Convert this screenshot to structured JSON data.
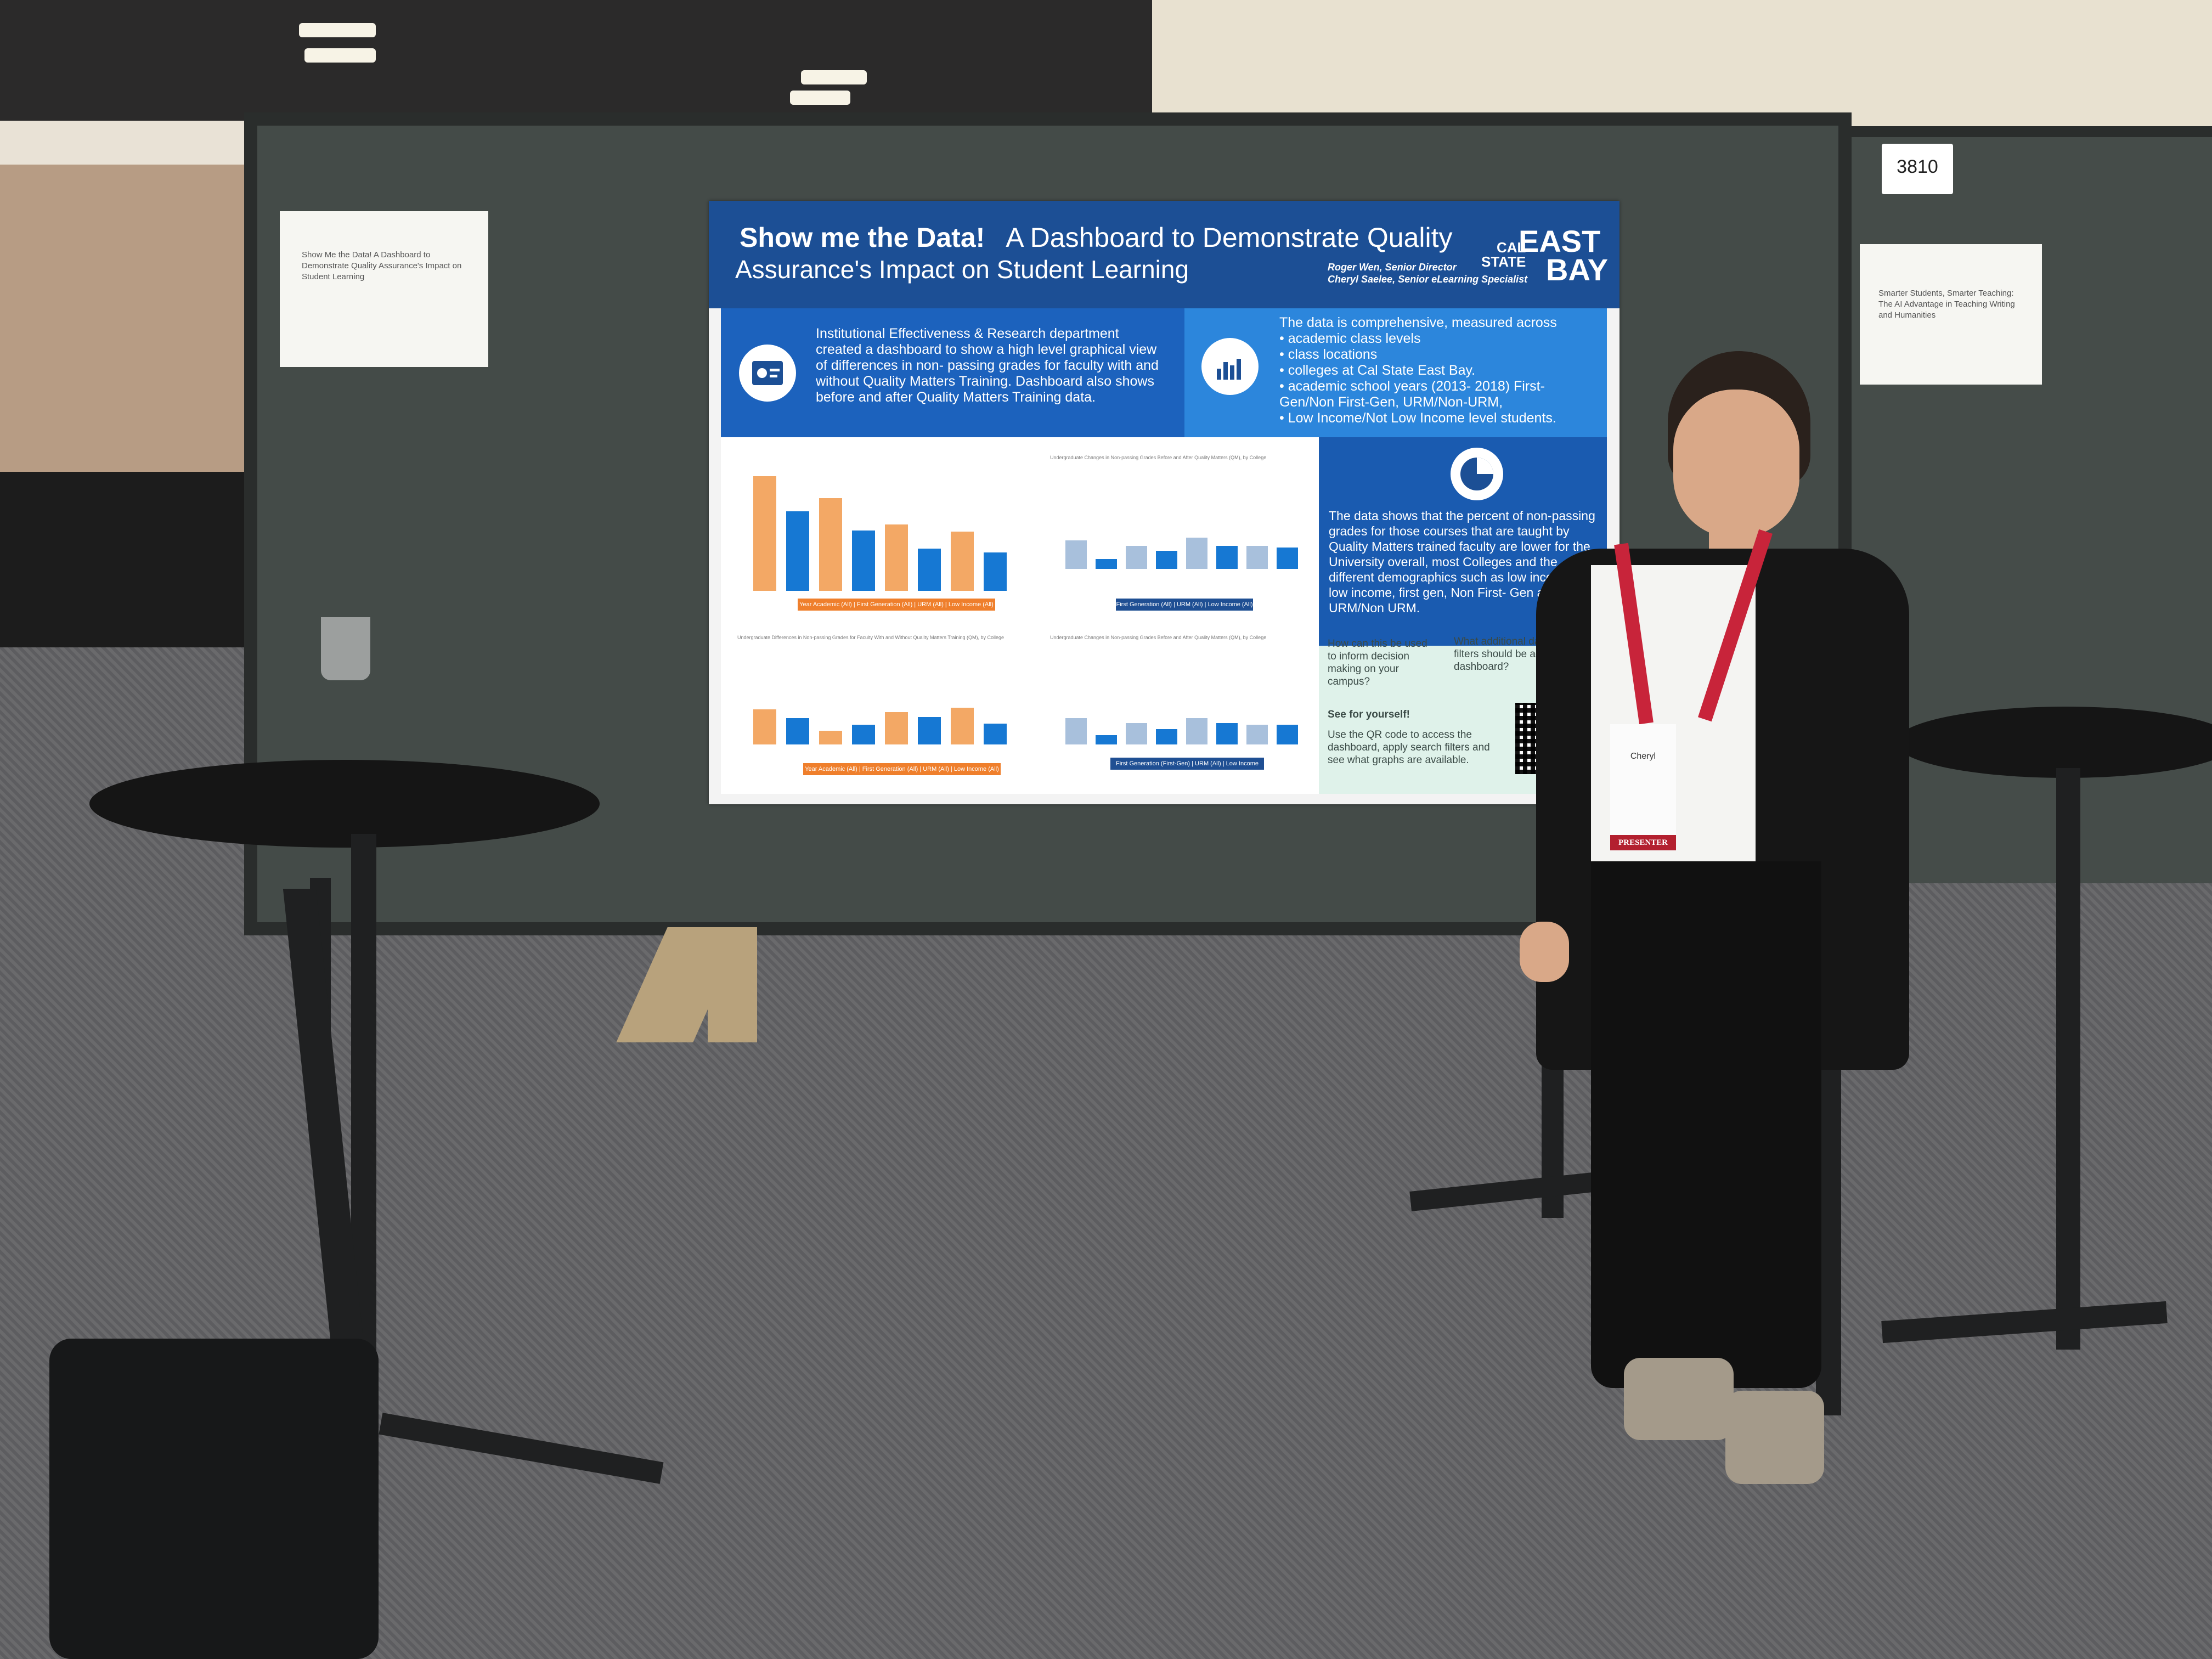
{
  "booth_number": "3810",
  "left_note": "Show Me the Data! A Dashboard to Demonstrate Quality Assurance's Impact on Student Learning",
  "right_note": "Smarter Students, Smarter Teaching: The AI Advantage in Teaching Writing and Humanities",
  "poster": {
    "title_bold": "Show me the Data!",
    "title_rest": "A Dashboard to Demonstrate Quality",
    "title_line2": "Assurance's Impact on Student Learning",
    "author1": "Roger Wen, Senior Director",
    "author2": "Cheryl Saelee, Senior eLearning Specialist",
    "logo_small_1": "CAL",
    "logo_small_2": "STATE",
    "logo_big_1": "EAST",
    "logo_big_2": "BAY",
    "intro_text": "Institutional Effectiveness & Research department created a dashboard to show a high level graphical view of differences in non- passing grades for faculty with and without Quality Matters Training. Dashboard also shows before and after Quality Matters Training data.",
    "measures_heading": "The data is comprehensive, measured across",
    "measures": [
      "academic class levels",
      "class locations",
      "colleges at Cal State East Bay.",
      "academic school years (2013- 2018) First-Gen/Non First-Gen, URM/Non-URM,",
      "Low Income/Not Low Income level students."
    ],
    "findings": "The data shows that the percent of non-passing grades for those courses that are taught by Quality Matters trained faculty are lower for the University overall, most Colleges and the different demographics such as low income, not low income, first gen, Non First- Gen and URM/Non URM.",
    "question1": "How can this be used to inform decision making on your campus?",
    "question2": "What additional data/search filters should be added to the dashboard?",
    "see_heading": "See for yourself!",
    "see_text": "Use the QR code to access the dashboard, apply search filters and see what graphs are available.",
    "chart_legend_1": "Year Academic (All) | First Generation (All) | URM (All) | Low Income (All)",
    "chart_legend_2": "First Generation (All) | URM (All) | Low Income (All)",
    "chart_legend_3": "Year Academic (All) | First Generation (All) | URM (All) | Low Income (All)",
    "chart_legend_4": "First Generation (First-Gen) | URM (All) | Low Income (All)",
    "chart_title_2": "Undergraduate Changes in Non-passing Grades Before and After Quality Matters (QM), by College",
    "chart_title_3": "Undergraduate Differences in Non-passing Grades for Faculty With and Without Quality Matters Training (QM), by College",
    "chart_title_4": "Undergraduate Changes in Non-passing Grades Before and After Quality Matters (QM), by College"
  },
  "badge": {
    "name": "Cheryl",
    "role": "PRESENTER"
  },
  "chart_data": [
    {
      "type": "bar",
      "series": [
        {
          "name": "",
          "values": [
            95,
            66,
            77,
            50,
            55,
            35,
            49,
            32
          ]
        }
      ],
      "colors": [
        "#f3a865",
        "#1678d3"
      ]
    },
    {
      "type": "bar",
      "series": [
        {
          "name": "",
          "values": [
            35,
            12,
            28,
            22,
            38,
            28,
            28,
            26
          ]
        }
      ],
      "colors": [
        "#a8c0dc",
        "#1678d3"
      ]
    },
    {
      "type": "bar",
      "series": [
        {
          "name": "",
          "values": [
            46,
            34,
            18,
            26,
            42,
            36,
            48,
            27
          ]
        }
      ],
      "colors": [
        "#f3a865",
        "#1678d3"
      ]
    },
    {
      "type": "bar",
      "series": [
        {
          "name": "",
          "values": [
            34,
            12,
            28,
            20,
            34,
            28,
            26,
            26
          ]
        }
      ],
      "colors": [
        "#a8c0dc",
        "#1678d3"
      ]
    }
  ]
}
